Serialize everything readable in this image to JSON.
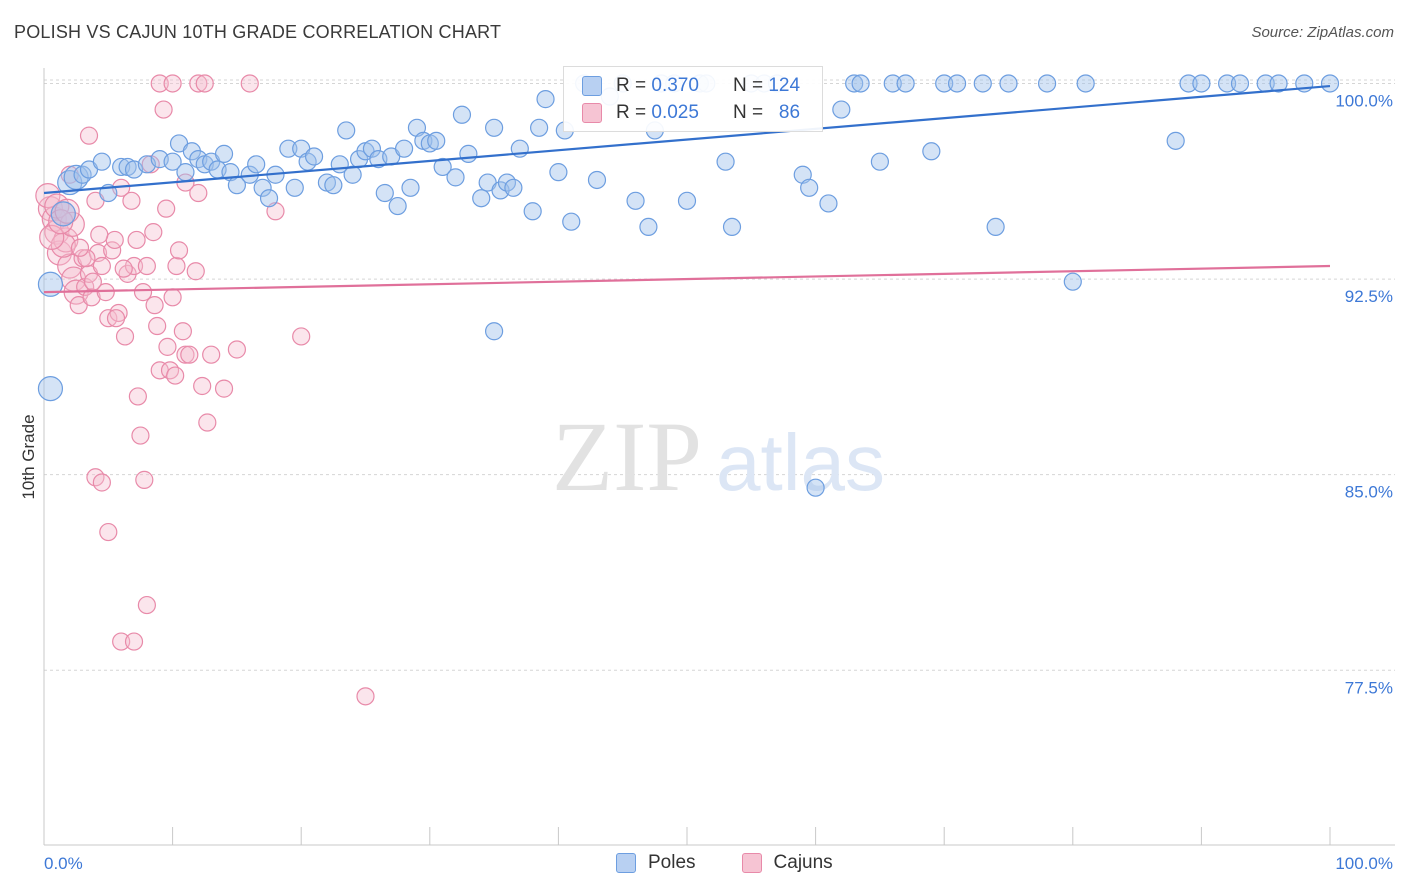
{
  "header": {
    "title": "POLISH VS CAJUN 10TH GRADE CORRELATION CHART",
    "source": "Source: ZipAtlas.com"
  },
  "legend": {
    "r_label": "R =",
    "n_label": "N =",
    "series": [
      {
        "name": "Poles",
        "r": "0.370",
        "n": "124",
        "color": "#6d9ee0"
      },
      {
        "name": "Cajuns",
        "r": "0.025",
        "n": "86",
        "color": "#e88aa9"
      }
    ]
  },
  "watermark": {
    "part1": "ZIP",
    "part2": "atlas"
  },
  "chart_data": {
    "type": "scatter",
    "title": "POLISH VS CAJUN 10TH GRADE CORRELATION CHART",
    "xlabel": "",
    "ylabel": "10th Grade",
    "xlim": [
      0,
      100
    ],
    "ylim": [
      70.8,
      100.9
    ],
    "x_tick_labels": [
      "0.0%",
      "100.0%"
    ],
    "y_ticks": [
      77.5,
      85.0,
      92.5,
      100.0
    ],
    "y_tick_labels": [
      "77.5%",
      "85.0%",
      "92.5%",
      "100.0%"
    ],
    "grid": true,
    "legend_position": "top-center",
    "series": [
      {
        "name": "Poles",
        "color": "#6d9ee0",
        "trend": {
          "x": [
            0,
            100
          ],
          "y": [
            95.8,
            99.9
          ]
        },
        "points": [
          [
            0.5,
            92.3
          ],
          [
            0.5,
            88.3
          ],
          [
            1.5,
            95.0
          ],
          [
            2.0,
            96.2
          ],
          [
            2.5,
            96.4
          ],
          [
            3.0,
            96.5
          ],
          [
            3.5,
            96.7
          ],
          [
            4.5,
            97.0
          ],
          [
            5.0,
            95.8
          ],
          [
            6.0,
            96.8
          ],
          [
            6.5,
            96.8
          ],
          [
            7.0,
            96.7
          ],
          [
            8.0,
            96.9
          ],
          [
            9.0,
            97.1
          ],
          [
            10.0,
            97.0
          ],
          [
            10.5,
            97.7
          ],
          [
            11.0,
            96.6
          ],
          [
            11.5,
            97.4
          ],
          [
            12.0,
            97.1
          ],
          [
            12.5,
            96.9
          ],
          [
            13.0,
            97.0
          ],
          [
            13.5,
            96.7
          ],
          [
            14.0,
            97.3
          ],
          [
            14.5,
            96.6
          ],
          [
            15.0,
            96.1
          ],
          [
            16.0,
            96.5
          ],
          [
            16.5,
            96.9
          ],
          [
            17.0,
            96.0
          ],
          [
            17.5,
            95.6
          ],
          [
            18.0,
            96.5
          ],
          [
            19.0,
            97.5
          ],
          [
            19.5,
            96.0
          ],
          [
            20.0,
            97.5
          ],
          [
            20.5,
            97.0
          ],
          [
            21.0,
            97.2
          ],
          [
            22.0,
            96.2
          ],
          [
            22.5,
            96.1
          ],
          [
            23.0,
            96.9
          ],
          [
            23.5,
            98.2
          ],
          [
            24.0,
            96.5
          ],
          [
            24.5,
            97.1
          ],
          [
            25.0,
            97.4
          ],
          [
            25.5,
            97.5
          ],
          [
            26.0,
            97.1
          ],
          [
            26.5,
            95.8
          ],
          [
            27.0,
            97.2
          ],
          [
            27.5,
            95.3
          ],
          [
            28.0,
            97.5
          ],
          [
            28.5,
            96.0
          ],
          [
            29.0,
            98.3
          ],
          [
            29.5,
            97.8
          ],
          [
            30.0,
            97.7
          ],
          [
            30.5,
            97.8
          ],
          [
            31.0,
            96.8
          ],
          [
            32.0,
            96.4
          ],
          [
            32.5,
            98.8
          ],
          [
            33.0,
            97.3
          ],
          [
            34.0,
            95.6
          ],
          [
            34.5,
            96.2
          ],
          [
            35.0,
            98.3
          ],
          [
            35.5,
            95.9
          ],
          [
            36.0,
            96.2
          ],
          [
            36.5,
            96.0
          ],
          [
            37.0,
            97.5
          ],
          [
            38.0,
            95.1
          ],
          [
            38.5,
            98.3
          ],
          [
            39.0,
            99.4
          ],
          [
            40.0,
            96.6
          ],
          [
            40.5,
            98.2
          ],
          [
            41.0,
            94.7
          ],
          [
            42.0,
            100.0
          ],
          [
            43.0,
            96.3
          ],
          [
            44.0,
            99.5
          ],
          [
            45.0,
            100.0
          ],
          [
            46.0,
            95.5
          ],
          [
            47.0,
            94.5
          ],
          [
            47.5,
            98.2
          ],
          [
            48.0,
            100.0
          ],
          [
            49.0,
            100.0
          ],
          [
            50.0,
            95.5
          ],
          [
            51.0,
            100.0
          ],
          [
            51.5,
            100.0
          ],
          [
            53.0,
            97.0
          ],
          [
            53.5,
            94.5
          ],
          [
            55.0,
            100.0
          ],
          [
            56.0,
            100.0
          ],
          [
            57.0,
            100.0
          ],
          [
            59.0,
            96.5
          ],
          [
            59.5,
            96.0
          ],
          [
            61.0,
            95.4
          ],
          [
            62.0,
            99.0
          ],
          [
            63.0,
            100.0
          ],
          [
            63.5,
            100.0
          ],
          [
            65.0,
            97.0
          ],
          [
            66.0,
            100.0
          ],
          [
            67.0,
            100.0
          ],
          [
            69.0,
            97.4
          ],
          [
            70.0,
            100.0
          ],
          [
            71.0,
            100.0
          ],
          [
            73.0,
            100.0
          ],
          [
            74.0,
            94.5
          ],
          [
            75.0,
            100.0
          ],
          [
            78.0,
            100.0
          ],
          [
            81.0,
            100.0
          ],
          [
            89.0,
            100.0
          ],
          [
            90.0,
            100.0
          ],
          [
            92.0,
            100.0
          ],
          [
            93.0,
            100.0
          ],
          [
            95.0,
            100.0
          ],
          [
            96.0,
            100.0
          ],
          [
            98.0,
            100.0
          ],
          [
            80.0,
            92.4
          ],
          [
            88.0,
            97.8
          ],
          [
            35.0,
            90.5
          ],
          [
            60.0,
            84.5
          ],
          [
            100.0,
            100.0
          ]
        ]
      },
      {
        "name": "Cajuns",
        "color": "#e88aa9",
        "trend": {
          "x": [
            0,
            100
          ],
          "y": [
            92.0,
            93.0
          ]
        },
        "points": [
          [
            0.5,
            95.2
          ],
          [
            0.8,
            94.8
          ],
          [
            1.0,
            94.3
          ],
          [
            1.2,
            93.5
          ],
          [
            1.5,
            95.0
          ],
          [
            1.7,
            94.0
          ],
          [
            2.0,
            93.0
          ],
          [
            2.3,
            92.5
          ],
          [
            2.5,
            92.0
          ],
          [
            2.7,
            91.5
          ],
          [
            3.0,
            93.3
          ],
          [
            3.2,
            92.2
          ],
          [
            3.5,
            92.7
          ],
          [
            3.7,
            91.8
          ],
          [
            4.0,
            95.5
          ],
          [
            4.2,
            93.5
          ],
          [
            4.5,
            93.0
          ],
          [
            4.8,
            92.0
          ],
          [
            5.0,
            91.0
          ],
          [
            5.3,
            93.6
          ],
          [
            5.5,
            94.0
          ],
          [
            5.8,
            91.2
          ],
          [
            6.0,
            96.0
          ],
          [
            6.3,
            90.3
          ],
          [
            6.5,
            92.7
          ],
          [
            7.0,
            93.0
          ],
          [
            7.3,
            88.0
          ],
          [
            7.5,
            86.5
          ],
          [
            7.8,
            84.8
          ],
          [
            8.0,
            93.0
          ],
          [
            8.3,
            96.9
          ],
          [
            8.5,
            94.3
          ],
          [
            8.8,
            90.7
          ],
          [
            9.0,
            89.0
          ],
          [
            9.3,
            99.0
          ],
          [
            9.5,
            95.2
          ],
          [
            9.8,
            89.0
          ],
          [
            10.0,
            91.8
          ],
          [
            10.3,
            93.0
          ],
          [
            10.5,
            93.6
          ],
          [
            10.8,
            90.5
          ],
          [
            11.0,
            89.6
          ],
          [
            11.3,
            89.6
          ],
          [
            11.8,
            92.8
          ],
          [
            12.0,
            95.8
          ],
          [
            12.3,
            88.4
          ],
          [
            12.7,
            87.0
          ],
          [
            13.0,
            89.6
          ],
          [
            14.0,
            88.3
          ],
          [
            15.0,
            89.8
          ],
          [
            16.0,
            100.0
          ],
          [
            18.0,
            95.1
          ],
          [
            20.0,
            90.3
          ],
          [
            3.5,
            98.0
          ],
          [
            4.0,
            84.9
          ],
          [
            4.5,
            84.7
          ],
          [
            5.0,
            82.8
          ],
          [
            6.0,
            78.6
          ],
          [
            7.0,
            78.6
          ],
          [
            8.0,
            80.0
          ],
          [
            9.0,
            100.0
          ],
          [
            10.0,
            100.0
          ],
          [
            11.0,
            96.2
          ],
          [
            12.0,
            100.0
          ],
          [
            2.0,
            96.5
          ],
          [
            1.5,
            93.8
          ],
          [
            2.2,
            94.6
          ],
          [
            3.3,
            93.3
          ],
          [
            3.8,
            92.4
          ],
          [
            6.8,
            95.5
          ],
          [
            7.2,
            94.0
          ],
          [
            5.6,
            91.0
          ],
          [
            8.6,
            91.5
          ],
          [
            9.6,
            89.9
          ],
          [
            10.2,
            88.8
          ],
          [
            25.0,
            76.5
          ],
          [
            0.3,
            95.7
          ],
          [
            0.6,
            94.1
          ],
          [
            1.0,
            95.3
          ],
          [
            1.3,
            94.7
          ],
          [
            1.8,
            95.1
          ],
          [
            2.8,
            93.7
          ],
          [
            4.3,
            94.2
          ],
          [
            6.2,
            92.9
          ],
          [
            7.7,
            92.0
          ],
          [
            12.5,
            100.0
          ]
        ]
      }
    ]
  }
}
